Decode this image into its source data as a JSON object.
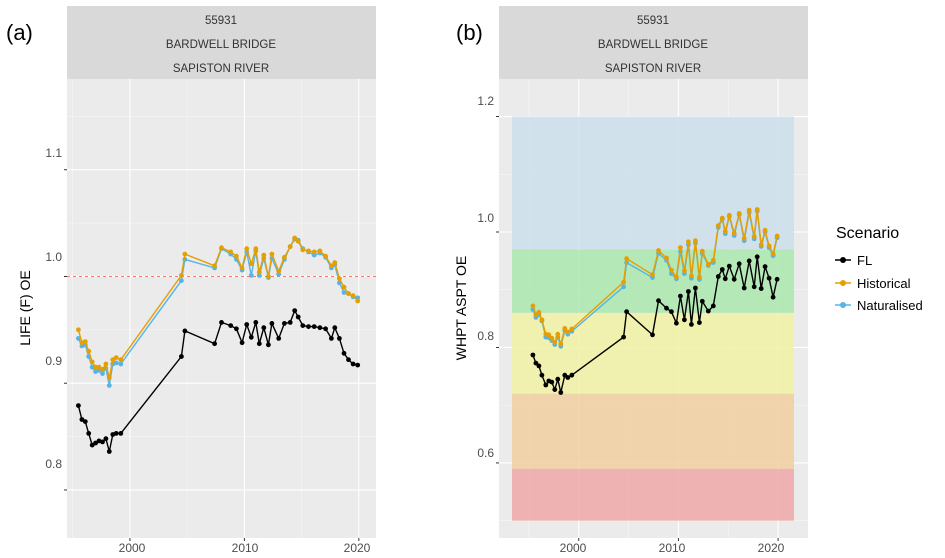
{
  "panels": [
    {
      "panel_label": "(a)",
      "strip": [
        "55931",
        "BARDWELL BRIDGE",
        "SAPISTON RIVER"
      ],
      "ylabel": "LIFE (F) OE",
      "ytick_labels": [
        "0.8",
        "0.9",
        "1.0",
        "1.1"
      ]
    },
    {
      "panel_label": "(b)",
      "strip": [
        "55931",
        "BARDWELL BRIDGE",
        "SAPISTON RIVER"
      ],
      "ylabel": "WHPT ASPT OE",
      "ytick_labels": [
        "0.6",
        "0.8",
        "1.0",
        "1.2"
      ]
    }
  ],
  "xtick_labels": [
    "2000",
    "2010",
    "2020"
  ],
  "legend": {
    "title": "Scenario",
    "items": [
      {
        "label": "FL",
        "color": "#000000"
      },
      {
        "label": "Historical",
        "color": "#E69F00"
      },
      {
        "label": "Naturalised",
        "color": "#56B4E9"
      }
    ]
  },
  "chart_data": [
    {
      "type": "line",
      "xlim": [
        1994.5,
        2021.5
      ],
      "ylim": [
        0.755,
        1.185
      ],
      "xticks": [
        2000,
        2010,
        2020
      ],
      "yticks": [
        0.8,
        0.9,
        1.0,
        1.1
      ],
      "grid": true,
      "reference_line": {
        "y": 1.0,
        "style": "dashed",
        "color": "#F8766D"
      },
      "x": [
        1995.5,
        1995.8,
        1996.1,
        1996.4,
        1996.7,
        1997.0,
        1997.3,
        1997.6,
        1997.9,
        1998.2,
        1998.5,
        1998.8,
        1999.2,
        2004.5,
        2004.8,
        2007.4,
        2008.0,
        2008.8,
        2009.3,
        2009.8,
        2010.2,
        2010.6,
        2011.0,
        2011.3,
        2011.7,
        2012.1,
        2012.4,
        2013.0,
        2013.5,
        2014.0,
        2014.4,
        2014.7,
        2015.1,
        2015.6,
        2016.1,
        2016.6,
        2017.1,
        2017.6,
        2017.9,
        2018.3,
        2018.7,
        2019.1,
        2019.5,
        2019.9
      ],
      "series": [
        {
          "name": "FL",
          "color": "#000000",
          "values": [
            0.879,
            0.866,
            0.864,
            0.853,
            0.842,
            0.844,
            0.846,
            0.845,
            0.848,
            0.836,
            0.852,
            0.853,
            0.853,
            0.925,
            0.949,
            0.937,
            0.957,
            0.954,
            0.951,
            0.938,
            0.955,
            0.943,
            0.957,
            0.937,
            0.952,
            0.936,
            0.956,
            0.942,
            0.956,
            0.957,
            0.968,
            0.962,
            0.954,
            0.953,
            0.953,
            0.952,
            0.951,
            0.942,
            0.952,
            0.942,
            0.928,
            0.922,
            0.918,
            0.917
          ]
        },
        {
          "name": "Historical",
          "color": "#E69F00",
          "values": [
            0.95,
            0.938,
            0.939,
            0.93,
            0.92,
            0.915,
            0.915,
            0.913,
            0.918,
            0.905,
            0.922,
            0.924,
            0.922,
            1.001,
            1.021,
            1.01,
            1.027,
            1.023,
            1.019,
            1.008,
            1.026,
            1.012,
            1.026,
            1.004,
            1.02,
            1.0,
            1.021,
            1.005,
            1.018,
            1.028,
            1.036,
            1.033,
            1.025,
            1.024,
            1.023,
            1.024,
            1.019,
            1.01,
            1.013,
            0.998,
            0.99,
            0.984,
            0.982,
            0.977
          ]
        },
        {
          "name": "Naturalised",
          "color": "#56B4E9",
          "values": [
            0.942,
            0.935,
            0.936,
            0.925,
            0.915,
            0.911,
            0.912,
            0.909,
            0.914,
            0.898,
            0.918,
            0.919,
            0.918,
            0.996,
            1.016,
            1.008,
            1.026,
            1.021,
            1.016,
            1.006,
            1.023,
            1.001,
            1.024,
            1.001,
            1.017,
            0.999,
            1.017,
            1.002,
            1.016,
            1.028,
            1.035,
            1.034,
            1.026,
            1.023,
            1.02,
            1.022,
            1.018,
            1.008,
            1.011,
            0.994,
            0.985,
            0.984,
            0.981,
            0.98
          ]
        }
      ]
    },
    {
      "type": "line",
      "xlim": [
        1992.0,
        2023.0
      ],
      "ylim": [
        0.47,
        1.265
      ],
      "xticks": [
        2000,
        2010,
        2020
      ],
      "yticks": [
        0.6,
        0.8,
        1.0,
        1.2
      ],
      "grid": true,
      "bands": [
        {
          "from": 0.5,
          "to": 0.59,
          "color": "#F0A8A8"
        },
        {
          "from": 0.59,
          "to": 0.72,
          "color": "#F2CFA0"
        },
        {
          "from": 0.72,
          "to": 0.86,
          "color": "#F1F1A4"
        },
        {
          "from": 0.86,
          "to": 0.97,
          "color": "#ACE8AE"
        },
        {
          "from": 0.97,
          "to": 1.2,
          "color": "#CCDFEB"
        }
      ],
      "x": [
        1995.4,
        1995.7,
        1996.0,
        1996.3,
        1996.7,
        1997.0,
        1997.3,
        1997.6,
        1997.9,
        1998.2,
        1998.6,
        1998.9,
        1999.3,
        2004.5,
        2004.8,
        2007.4,
        2008.0,
        2008.8,
        2009.3,
        2009.8,
        2010.2,
        2010.6,
        2011.0,
        2011.3,
        2011.7,
        2012.1,
        2012.4,
        2013.0,
        2013.5,
        2014.0,
        2014.4,
        2014.7,
        2015.1,
        2015.6,
        2016.1,
        2016.6,
        2017.1,
        2017.6,
        2017.9,
        2018.3,
        2018.7,
        2019.1,
        2019.5,
        2019.9
      ],
      "series": [
        {
          "name": "FL",
          "color": "#000000",
          "values": [
            0.787,
            0.773,
            0.768,
            0.752,
            0.735,
            0.742,
            0.74,
            0.727,
            0.745,
            0.722,
            0.752,
            0.748,
            0.752,
            0.818,
            0.862,
            0.822,
            0.881,
            0.868,
            0.862,
            0.842,
            0.889,
            0.848,
            0.897,
            0.84,
            0.903,
            0.843,
            0.88,
            0.863,
            0.872,
            0.923,
            0.935,
            0.919,
            0.941,
            0.918,
            0.945,
            0.903,
            0.95,
            0.905,
            0.957,
            0.902,
            0.94,
            0.92,
            0.887,
            0.918
          ]
        },
        {
          "name": "Historical",
          "color": "#E69F00",
          "values": [
            0.872,
            0.857,
            0.861,
            0.848,
            0.823,
            0.822,
            0.816,
            0.809,
            0.823,
            0.806,
            0.833,
            0.827,
            0.832,
            0.913,
            0.954,
            0.926,
            0.968,
            0.955,
            0.934,
            0.922,
            0.973,
            0.933,
            0.983,
            0.924,
            0.985,
            0.922,
            0.967,
            0.944,
            0.951,
            1.011,
            1.024,
            1.001,
            1.029,
            0.998,
            1.032,
            0.989,
            1.038,
            0.992,
            1.039,
            0.978,
            1.003,
            0.976,
            0.962,
            0.993
          ]
        },
        {
          "name": "Naturalised",
          "color": "#56B4E9",
          "values": [
            0.866,
            0.852,
            0.857,
            0.846,
            0.818,
            0.817,
            0.812,
            0.805,
            0.818,
            0.802,
            0.829,
            0.823,
            0.828,
            0.905,
            0.947,
            0.921,
            0.963,
            0.951,
            0.928,
            0.919,
            0.966,
            0.928,
            0.978,
            0.92,
            0.981,
            0.918,
            0.963,
            0.942,
            0.947,
            1.008,
            1.022,
            0.997,
            1.027,
            0.994,
            1.03,
            0.985,
            1.034,
            0.988,
            1.036,
            0.975,
            1.0,
            0.973,
            0.959,
            0.99
          ]
        }
      ]
    }
  ]
}
